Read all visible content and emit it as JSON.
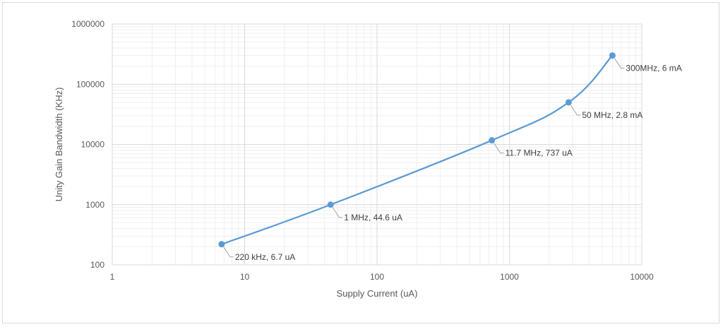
{
  "chart_data": {
    "type": "scatter",
    "xlabel": "Supply Current (uA)",
    "ylabel": "Unity Gain Bandwidth (KHz)",
    "x_scale": "log",
    "y_scale": "log",
    "xlim": [
      1,
      10000
    ],
    "ylim": [
      100,
      1000000
    ],
    "x_ticks": [
      "1",
      "10",
      "100",
      "1000",
      "10000"
    ],
    "y_ticks": [
      "100",
      "1000",
      "10000",
      "100000",
      "1000000"
    ],
    "grid": "major and minor",
    "series": [
      {
        "color": "#5b9bd5",
        "style": "smooth line with markers",
        "points": [
          {
            "x": 6.7,
            "y": 220,
            "label": "220 kHz, 6.7 uA"
          },
          {
            "x": 44.6,
            "y": 1000,
            "label": "1 MHz, 44.6 uA"
          },
          {
            "x": 737,
            "y": 11700,
            "label": "11.7 MHz, 737 uA"
          },
          {
            "x": 2800,
            "y": 50000,
            "label": "50 MHz, 2.8 mA"
          },
          {
            "x": 6000,
            "y": 300000,
            "label": "300MHz, 6 mA"
          }
        ]
      }
    ]
  }
}
